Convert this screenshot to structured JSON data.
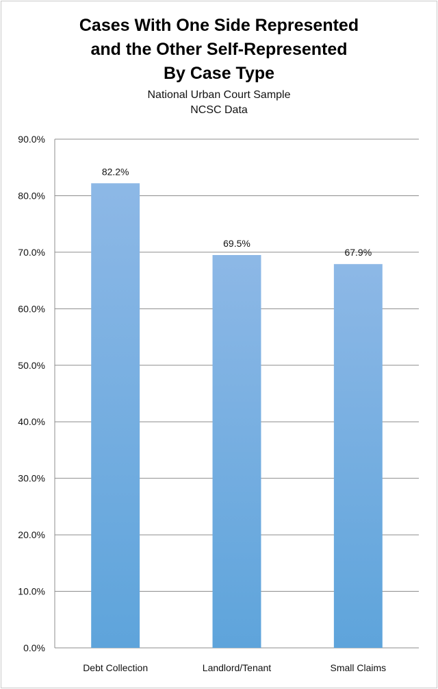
{
  "chart_data": {
    "type": "bar",
    "title": [
      "Cases With One Side Represented",
      "and the Other Self-Represented",
      "By Case Type"
    ],
    "subtitle": [
      "National Urban Court Sample",
      "NCSC Data"
    ],
    "categories": [
      "Debt Collection",
      "Landlord/Tenant",
      "Small Claims"
    ],
    "values": [
      82.2,
      69.5,
      67.9
    ],
    "data_labels": [
      "82.2%",
      "69.5%",
      "67.9%"
    ],
    "ylim": [
      0,
      90
    ],
    "yticks": [
      0,
      10,
      20,
      30,
      40,
      50,
      60,
      70,
      80,
      90
    ],
    "ytick_labels": [
      "0.0%",
      "10.0%",
      "20.0%",
      "30.0%",
      "40.0%",
      "50.0%",
      "60.0%",
      "70.0%",
      "80.0%",
      "90.0%"
    ],
    "xlabel": "",
    "ylabel": "",
    "grid": true,
    "legend": "none",
    "colors": {
      "bar_top": "#8db8e6",
      "bar_bottom": "#5ea4db",
      "grid": "#8c8c8c"
    }
  }
}
